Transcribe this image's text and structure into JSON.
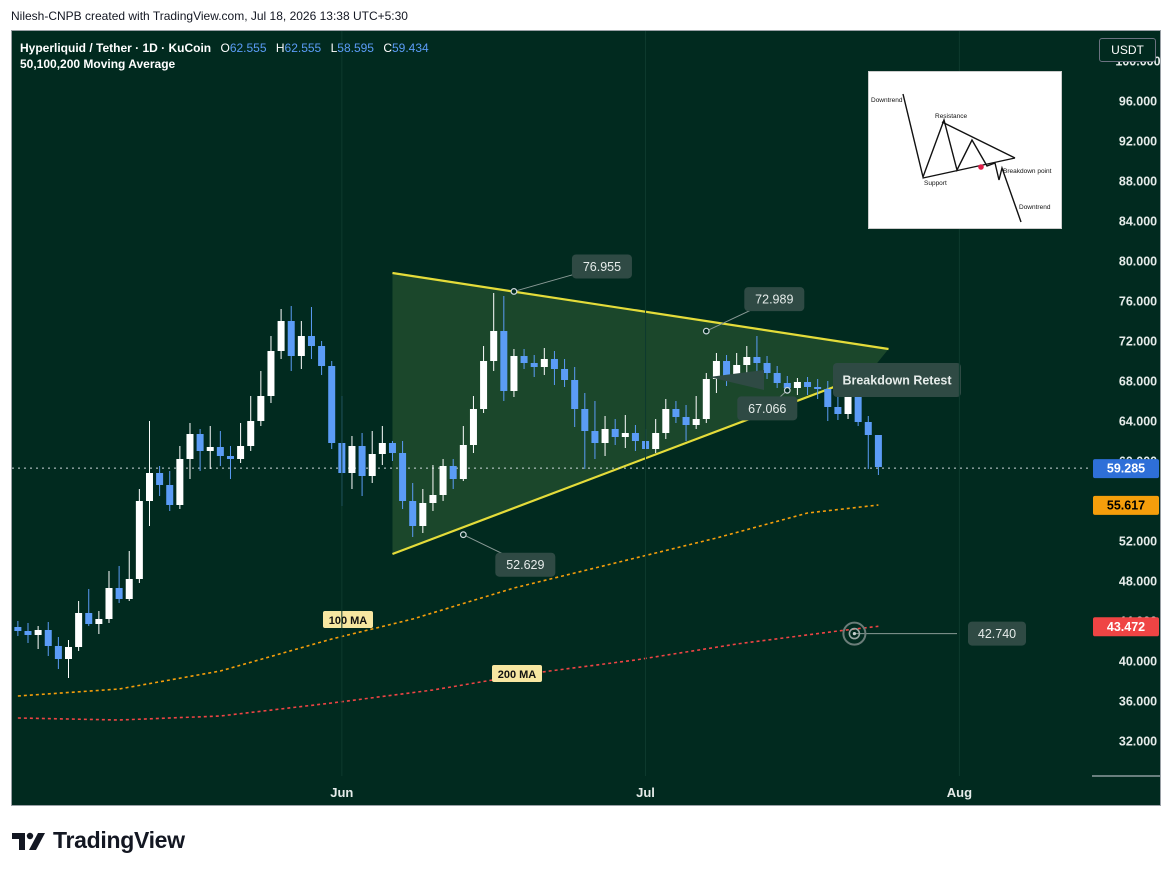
{
  "header": {
    "credit": "Nilesh-CNPB created with TradingView.com, Jul 18, 2026 13:38 UTC+5:30"
  },
  "legend": {
    "symbol": "Hyperliquid / Tether · 1D · KuCoin",
    "open_label": "O",
    "open": "62.555",
    "high_label": "H",
    "high": "62.555",
    "low_label": "L",
    "low": "58.595",
    "close_label": "C",
    "close": "59.434",
    "indicator": "50,100,200 Moving Average"
  },
  "currency": "USDT",
  "footer": {
    "brand": "TradingView"
  },
  "inset": {
    "labels": {
      "downtrend_top": "Downtrend",
      "resistance": "Resistance",
      "support": "Support",
      "breakdown": "Breakdown point",
      "downtrend_bottom": "Downtrend"
    }
  },
  "colors": {
    "background": "#012a1f",
    "up": "#ffffff",
    "down": "#5b9cf6",
    "triangle": "#e4dc3a",
    "ma100": "#f59e0b",
    "ma200": "#ef4444",
    "price_badge": "#2e6fd8"
  },
  "chart_data": {
    "type": "candlestick",
    "y_axis": {
      "ylim": [
        28.5,
        103.0
      ],
      "ticks": [
        "100.000",
        "96.000",
        "92.000",
        "88.000",
        "84.000",
        "80.000",
        "76.000",
        "72.000",
        "68.000",
        "64.000",
        "60.000",
        "56.000",
        "52.000",
        "48.000",
        "44.000",
        "40.000",
        "36.000",
        "32.000"
      ]
    },
    "x_axis": {
      "range": [
        "2026-05-01",
        "2026-08-14"
      ],
      "ticks": [
        {
          "label": "Jun",
          "date": "2026-06-01"
        },
        {
          "label": "Jul",
          "date": "2026-07-01"
        },
        {
          "label": "Aug",
          "date": "2026-08-01"
        }
      ]
    },
    "start_date": "2026-04-30",
    "candles": [
      {
        "o": 43.4,
        "h": 44.0,
        "l": 42.5,
        "c": 43.0
      },
      {
        "o": 43.0,
        "h": 43.8,
        "l": 41.8,
        "c": 42.6
      },
      {
        "o": 42.6,
        "h": 43.5,
        "l": 41.2,
        "c": 43.1
      },
      {
        "o": 43.1,
        "h": 43.9,
        "l": 40.5,
        "c": 41.5
      },
      {
        "o": 41.5,
        "h": 42.4,
        "l": 39.2,
        "c": 40.2
      },
      {
        "o": 40.2,
        "h": 42.1,
        "l": 38.3,
        "c": 41.4
      },
      {
        "o": 41.4,
        "h": 46.0,
        "l": 41.0,
        "c": 44.8
      },
      {
        "o": 44.8,
        "h": 47.2,
        "l": 43.5,
        "c": 43.7
      },
      {
        "o": 43.7,
        "h": 45.0,
        "l": 42.7,
        "c": 44.2
      },
      {
        "o": 44.2,
        "h": 49.0,
        "l": 43.8,
        "c": 47.3
      },
      {
        "o": 47.3,
        "h": 49.5,
        "l": 45.8,
        "c": 46.2
      },
      {
        "o": 46.2,
        "h": 51.0,
        "l": 46.0,
        "c": 48.2
      },
      {
        "o": 48.2,
        "h": 57.2,
        "l": 47.8,
        "c": 56.0
      },
      {
        "o": 56.0,
        "h": 64.0,
        "l": 53.5,
        "c": 58.8
      },
      {
        "o": 58.8,
        "h": 59.5,
        "l": 56.5,
        "c": 57.6
      },
      {
        "o": 57.6,
        "h": 59.0,
        "l": 55.0,
        "c": 55.6
      },
      {
        "o": 55.6,
        "h": 61.5,
        "l": 55.2,
        "c": 60.2
      },
      {
        "o": 60.2,
        "h": 63.8,
        "l": 58.2,
        "c": 62.7
      },
      {
        "o": 62.7,
        "h": 63.2,
        "l": 59.0,
        "c": 61.0
      },
      {
        "o": 61.0,
        "h": 63.5,
        "l": 59.2,
        "c": 61.4
      },
      {
        "o": 61.4,
        "h": 63.0,
        "l": 59.5,
        "c": 60.5
      },
      {
        "o": 60.5,
        "h": 61.5,
        "l": 58.2,
        "c": 60.2
      },
      {
        "o": 60.2,
        "h": 63.8,
        "l": 59.8,
        "c": 61.5
      },
      {
        "o": 61.5,
        "h": 66.5,
        "l": 61.0,
        "c": 64.0
      },
      {
        "o": 64.0,
        "h": 69.0,
        "l": 63.5,
        "c": 66.5
      },
      {
        "o": 66.5,
        "h": 72.5,
        "l": 65.8,
        "c": 71.0
      },
      {
        "o": 71.0,
        "h": 75.2,
        "l": 70.2,
        "c": 74.0
      },
      {
        "o": 74.0,
        "h": 75.5,
        "l": 69.0,
        "c": 70.5
      },
      {
        "o": 70.5,
        "h": 74.0,
        "l": 69.2,
        "c": 72.5
      },
      {
        "o": 72.5,
        "h": 75.4,
        "l": 70.2,
        "c": 71.5
      },
      {
        "o": 71.5,
        "h": 72.0,
        "l": 68.6,
        "c": 69.5
      },
      {
        "o": 69.5,
        "h": 70.0,
        "l": 61.2,
        "c": 61.8
      },
      {
        "o": 61.8,
        "h": 66.5,
        "l": 55.5,
        "c": 58.8
      },
      {
        "o": 58.8,
        "h": 62.5,
        "l": 57.2,
        "c": 61.5
      },
      {
        "o": 61.5,
        "h": 62.8,
        "l": 56.5,
        "c": 58.5
      },
      {
        "o": 58.5,
        "h": 63.0,
        "l": 57.8,
        "c": 60.7
      },
      {
        "o": 60.7,
        "h": 63.5,
        "l": 59.6,
        "c": 61.8
      },
      {
        "o": 61.8,
        "h": 62.0,
        "l": 60.0,
        "c": 60.8
      },
      {
        "o": 60.8,
        "h": 62.0,
        "l": 55.2,
        "c": 56.0
      },
      {
        "o": 56.0,
        "h": 57.8,
        "l": 52.4,
        "c": 53.5
      },
      {
        "o": 53.5,
        "h": 57.2,
        "l": 52.8,
        "c": 55.8
      },
      {
        "o": 55.8,
        "h": 59.6,
        "l": 55.0,
        "c": 56.6
      },
      {
        "o": 56.6,
        "h": 60.2,
        "l": 56.0,
        "c": 59.5
      },
      {
        "o": 59.5,
        "h": 60.2,
        "l": 57.2,
        "c": 58.2
      },
      {
        "o": 58.2,
        "h": 63.5,
        "l": 58.0,
        "c": 61.6
      },
      {
        "o": 61.6,
        "h": 66.5,
        "l": 60.8,
        "c": 65.2
      },
      {
        "o": 65.2,
        "h": 71.5,
        "l": 64.8,
        "c": 70.0
      },
      {
        "o": 70.0,
        "h": 76.8,
        "l": 69.0,
        "c": 73.0
      },
      {
        "o": 73.0,
        "h": 76.5,
        "l": 66.0,
        "c": 67.0
      },
      {
        "o": 67.0,
        "h": 71.2,
        "l": 66.4,
        "c": 70.5
      },
      {
        "o": 70.5,
        "h": 71.2,
        "l": 69.2,
        "c": 69.8
      },
      {
        "o": 69.8,
        "h": 70.6,
        "l": 68.4,
        "c": 69.4
      },
      {
        "o": 69.4,
        "h": 71.3,
        "l": 68.6,
        "c": 70.2
      },
      {
        "o": 70.2,
        "h": 71.0,
        "l": 67.6,
        "c": 69.2
      },
      {
        "o": 69.2,
        "h": 70.2,
        "l": 67.4,
        "c": 68.1
      },
      {
        "o": 68.1,
        "h": 69.4,
        "l": 63.4,
        "c": 65.2
      },
      {
        "o": 65.2,
        "h": 66.8,
        "l": 59.2,
        "c": 63.0
      },
      {
        "o": 63.0,
        "h": 66.0,
        "l": 60.2,
        "c": 61.8
      },
      {
        "o": 61.8,
        "h": 64.5,
        "l": 60.5,
        "c": 63.2
      },
      {
        "o": 63.2,
        "h": 64.2,
        "l": 61.6,
        "c": 62.4
      },
      {
        "o": 62.4,
        "h": 64.6,
        "l": 61.3,
        "c": 62.8
      },
      {
        "o": 62.8,
        "h": 63.6,
        "l": 61.0,
        "c": 62.0
      },
      {
        "o": 62.0,
        "h": 63.2,
        "l": 60.5,
        "c": 61.2
      },
      {
        "o": 61.2,
        "h": 64.2,
        "l": 60.8,
        "c": 62.8
      },
      {
        "o": 62.8,
        "h": 66.2,
        "l": 62.2,
        "c": 65.2
      },
      {
        "o": 65.2,
        "h": 66.0,
        "l": 63.8,
        "c": 64.4
      },
      {
        "o": 64.4,
        "h": 65.6,
        "l": 62.0,
        "c": 63.6
      },
      {
        "o": 63.6,
        "h": 66.5,
        "l": 63.2,
        "c": 64.2
      },
      {
        "o": 64.2,
        "h": 68.8,
        "l": 63.8,
        "c": 68.2
      },
      {
        "o": 68.2,
        "h": 70.8,
        "l": 66.8,
        "c": 70.0
      },
      {
        "o": 70.0,
        "h": 70.6,
        "l": 67.5,
        "c": 68.2
      },
      {
        "o": 68.2,
        "h": 70.8,
        "l": 67.8,
        "c": 69.6
      },
      {
        "o": 69.6,
        "h": 71.5,
        "l": 68.8,
        "c": 70.4
      },
      {
        "o": 70.4,
        "h": 72.5,
        "l": 68.6,
        "c": 69.8
      },
      {
        "o": 69.8,
        "h": 70.5,
        "l": 68.2,
        "c": 68.8
      },
      {
        "o": 68.8,
        "h": 69.5,
        "l": 67.3,
        "c": 67.8
      },
      {
        "o": 67.8,
        "h": 68.5,
        "l": 66.8,
        "c": 67.3
      },
      {
        "o": 67.3,
        "h": 68.3,
        "l": 66.6,
        "c": 67.9
      },
      {
        "o": 67.9,
        "h": 68.4,
        "l": 66.6,
        "c": 67.4
      },
      {
        "o": 67.4,
        "h": 68.2,
        "l": 66.2,
        "c": 67.2
      },
      {
        "o": 67.2,
        "h": 68.0,
        "l": 64.0,
        "c": 65.4
      },
      {
        "o": 65.4,
        "h": 66.8,
        "l": 64.1,
        "c": 64.7
      },
      {
        "o": 64.7,
        "h": 68.8,
        "l": 64.2,
        "c": 66.8
      },
      {
        "o": 66.8,
        "h": 67.8,
        "l": 63.5,
        "c": 63.9
      },
      {
        "o": 63.9,
        "h": 64.5,
        "l": 59.2,
        "c": 62.6
      },
      {
        "o": 62.6,
        "h": 62.6,
        "l": 58.6,
        "c": 59.4
      }
    ],
    "moving_averages": [
      {
        "name": "100 MA",
        "style": "dashed",
        "points": [
          [
            "2026-04-30",
            36.5
          ],
          [
            "2026-05-10",
            37.2
          ],
          [
            "2026-05-20",
            39.0
          ],
          [
            "2026-05-31",
            42.2
          ],
          [
            "2026-06-08",
            44.2
          ],
          [
            "2026-06-18",
            47.3
          ],
          [
            "2026-06-28",
            49.8
          ],
          [
            "2026-07-08",
            52.3
          ],
          [
            "2026-07-17",
            54.8
          ],
          [
            "2026-07-24",
            55.6
          ]
        ]
      },
      {
        "name": "200 MA",
        "style": "dashed",
        "points": [
          [
            "2026-04-30",
            34.3
          ],
          [
            "2026-05-10",
            34.1
          ],
          [
            "2026-05-20",
            34.5
          ],
          [
            "2026-05-31",
            35.8
          ],
          [
            "2026-06-10",
            37.1
          ],
          [
            "2026-06-20",
            38.8
          ],
          [
            "2026-06-30",
            40.1
          ],
          [
            "2026-07-10",
            41.7
          ],
          [
            "2026-07-20",
            43.0
          ],
          [
            "2026-07-24",
            43.47
          ]
        ]
      }
    ],
    "triangle": {
      "resistance": [
        [
          "2026-06-06",
          78.8
        ],
        [
          "2026-07-25",
          71.2
        ]
      ],
      "support": [
        [
          "2026-06-06",
          50.7
        ],
        [
          "2026-07-23",
          68.7
        ]
      ]
    },
    "price_annotations": [
      {
        "label": "76.955",
        "date": "2026-06-18",
        "price": 76.955
      },
      {
        "label": "72.989",
        "date": "2026-07-07",
        "price": 72.989
      },
      {
        "label": "67.066",
        "date": "2026-07-15",
        "price": 67.066
      },
      {
        "label": "52.629",
        "date": "2026-06-13",
        "price": 52.629
      }
    ],
    "breakdown_label": "Breakdown Retest",
    "ma_labels": {
      "ma100": "100 MA",
      "ma200": "200 MA"
    },
    "price_line": {
      "price": 59.285,
      "label": "59.285"
    },
    "axis_badges": [
      {
        "label": "59.285",
        "price": 59.285,
        "color": "#2e6fd8",
        "text": "#ffffff"
      },
      {
        "label": "55.617",
        "price": 55.617,
        "color": "#f59e0b",
        "text": "#000000"
      },
      {
        "label": "43.472",
        "price": 43.472,
        "color": "#ef4444",
        "text": "#ffffff"
      }
    ],
    "target": {
      "label": "42.740",
      "price": 42.74,
      "date": "2026-07-24"
    }
  }
}
